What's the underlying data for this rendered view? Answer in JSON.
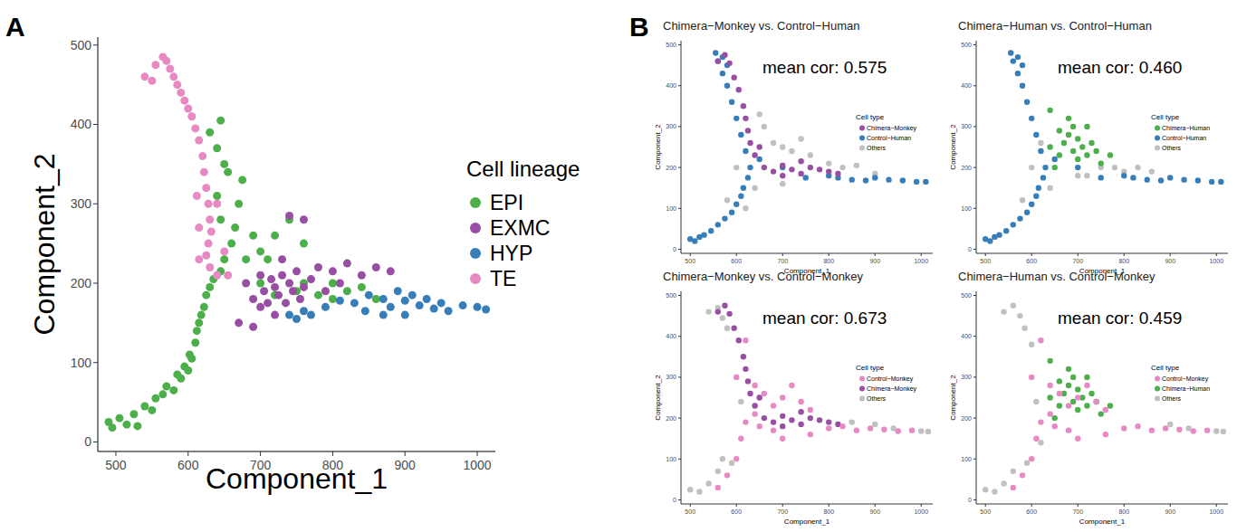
{
  "chart_data": [
    {
      "type": "scatter",
      "panel": "A",
      "x_label": "Component_1",
      "y_label": "Component_2",
      "legend_title": "Cell lineage",
      "legend": "right",
      "xlim": [
        475,
        1025
      ],
      "ylim": [
        -12,
        510
      ],
      "xticks": [
        500,
        600,
        700,
        800,
        900,
        1000
      ],
      "yticks": [
        0,
        100,
        200,
        300,
        400,
        500
      ],
      "series": [
        {
          "name": "EPI",
          "color": "#4daf4a",
          "x": [
            490,
            495,
            505,
            515,
            525,
            530,
            540,
            550,
            555,
            565,
            570,
            580,
            585,
            590,
            595,
            600,
            602,
            605,
            610,
            612,
            615,
            618,
            622,
            625,
            630,
            635,
            645,
            650,
            660,
            665,
            670,
            675,
            655,
            640,
            645,
            690,
            700,
            710,
            720,
            740,
            760,
            700,
            720,
            750,
            780,
            800,
            820,
            840,
            860,
            630,
            640,
            650,
            680,
            760,
            800,
            645
          ],
          "y": [
            25,
            18,
            30,
            22,
            35,
            20,
            45,
            40,
            55,
            60,
            70,
            65,
            85,
            80,
            95,
            90,
            110,
            105,
            125,
            140,
            150,
            160,
            170,
            185,
            195,
            205,
            215,
            230,
            250,
            270,
            300,
            330,
            340,
            310,
            280,
            260,
            240,
            230,
            260,
            280,
            250,
            200,
            185,
            190,
            185,
            180,
            190,
            195,
            180,
            390,
            370,
            350,
            230,
            200,
            200,
            405
          ]
        },
        {
          "name": "EXMC",
          "color": "#984ea3",
          "x": [
            680,
            690,
            700,
            705,
            710,
            715,
            720,
            725,
            730,
            735,
            740,
            745,
            750,
            755,
            760,
            770,
            780,
            790,
            800,
            810,
            820,
            840,
            860,
            880,
            700,
            720,
            740,
            760,
            670,
            690,
            730
          ],
          "y": [
            200,
            180,
            210,
            190,
            175,
            205,
            195,
            185,
            210,
            175,
            200,
            190,
            215,
            180,
            195,
            205,
            220,
            190,
            215,
            200,
            225,
            210,
            220,
            215,
            170,
            160,
            285,
            280,
            150,
            145,
            230
          ]
        },
        {
          "name": "HYP",
          "color": "#377eb8",
          "x": [
            740,
            750,
            760,
            770,
            790,
            810,
            830,
            850,
            870,
            880,
            890,
            900,
            910,
            920,
            930,
            940,
            950,
            960,
            980,
            1000,
            1012,
            870,
            845,
            900
          ],
          "y": [
            160,
            155,
            165,
            160,
            170,
            178,
            175,
            185,
            180,
            170,
            190,
            178,
            185,
            172,
            180,
            168,
            175,
            165,
            172,
            170,
            167,
            160,
            165,
            160
          ]
        },
        {
          "name": "TE",
          "color": "#e78ac3",
          "x": [
            540,
            550,
            555,
            565,
            570,
            575,
            580,
            585,
            590,
            595,
            600,
            605,
            610,
            615,
            620,
            622,
            625,
            628,
            630,
            632,
            628,
            625,
            630,
            615,
            640,
            650,
            612,
            615,
            640,
            655
          ],
          "y": [
            460,
            455,
            475,
            485,
            480,
            470,
            460,
            450,
            440,
            430,
            420,
            410,
            395,
            380,
            360,
            340,
            320,
            300,
            280,
            265,
            250,
            235,
            220,
            230,
            210,
            240,
            310,
            270,
            300,
            210
          ]
        }
      ]
    },
    {
      "type": "scatter",
      "panel": "B",
      "title": "Chimera−Monkey vs. Control−Human",
      "annotations": [
        "mean cor: 0.575"
      ],
      "x_label": "Component_1",
      "y_label": "Component_2",
      "legend_title": "Cell type",
      "legend": "top-right",
      "xlim": [
        480,
        1025
      ],
      "ylim": [
        -10,
        510
      ],
      "xticks": [
        500,
        600,
        700,
        800,
        900,
        1000
      ],
      "yticks": [
        0,
        100,
        200,
        300,
        400,
        500
      ],
      "series": [
        {
          "name": "Others",
          "color": "#c0c0c0",
          "x": [
            600,
            680,
            700,
            720,
            760,
            740,
            660,
            650,
            800,
            830,
            860,
            700,
            620,
            580,
            640,
            900
          ],
          "y": [
            200,
            260,
            250,
            240,
            230,
            270,
            300,
            330,
            210,
            200,
            205,
            160,
            100,
            120,
            150,
            185
          ]
        },
        {
          "name": "Control−Human",
          "color": "#377eb8",
          "x": [
            500,
            510,
            520,
            530,
            545,
            560,
            575,
            590,
            600,
            610,
            615,
            625,
            630,
            620,
            610,
            600,
            590,
            580,
            570,
            560,
            555,
            570,
            580,
            820,
            850,
            880,
            900,
            930,
            960,
            990,
            1010,
            800,
            700,
            750,
            650
          ],
          "y": [
            25,
            20,
            30,
            35,
            45,
            60,
            75,
            90,
            110,
            130,
            150,
            175,
            200,
            240,
            280,
            320,
            360,
            400,
            430,
            460,
            480,
            470,
            450,
            175,
            170,
            168,
            175,
            170,
            168,
            165,
            165,
            180,
            200,
            175,
            220
          ]
        },
        {
          "name": "Chimera−Monkey",
          "color": "#984ea3",
          "x": [
            560,
            575,
            585,
            595,
            605,
            615,
            620,
            625,
            630,
            640,
            660,
            680,
            700,
            720,
            740,
            760,
            780,
            800,
            820,
            700,
            740,
            650
          ],
          "y": [
            460,
            475,
            455,
            420,
            390,
            350,
            320,
            290,
            260,
            230,
            200,
            190,
            205,
            195,
            185,
            200,
            195,
            190,
            185,
            180,
            215,
            250
          ]
        }
      ]
    },
    {
      "type": "scatter",
      "title": "Chimera−Human vs. Control−Human",
      "annotations": [
        "mean cor: 0.460"
      ],
      "x_label": "Component_1",
      "y_label": "Component_2",
      "legend_title": "Cell type",
      "legend": "top-right",
      "xlim": [
        480,
        1025
      ],
      "ylim": [
        -10,
        510
      ],
      "xticks": [
        500,
        600,
        700,
        800,
        900,
        1000
      ],
      "yticks": [
        0,
        100,
        200,
        300,
        400,
        500
      ],
      "series": [
        {
          "name": "Others",
          "color": "#c0c0c0",
          "x": [
            600,
            620,
            750,
            780,
            800,
            830,
            700,
            640,
            580,
            860,
            720
          ],
          "y": [
            200,
            260,
            200,
            200,
            190,
            200,
            180,
            150,
            120,
            190,
            180
          ]
        },
        {
          "name": "Control−Human",
          "color": "#377eb8",
          "x": [
            500,
            510,
            520,
            530,
            545,
            560,
            575,
            590,
            600,
            610,
            615,
            625,
            630,
            620,
            610,
            600,
            590,
            580,
            570,
            560,
            555,
            570,
            580,
            820,
            850,
            880,
            900,
            930,
            960,
            990,
            1010,
            800,
            700,
            750,
            650
          ],
          "y": [
            25,
            20,
            30,
            35,
            45,
            60,
            75,
            90,
            110,
            130,
            150,
            175,
            200,
            240,
            280,
            320,
            360,
            400,
            430,
            460,
            480,
            470,
            450,
            175,
            170,
            168,
            175,
            170,
            168,
            165,
            165,
            180,
            200,
            175,
            220
          ]
        },
        {
          "name": "Chimera−Human",
          "color": "#4daf4a",
          "x": [
            650,
            660,
            670,
            680,
            690,
            700,
            710,
            720,
            730,
            740,
            680,
            700,
            660,
            750,
            720,
            640,
            690,
            770,
            640
          ],
          "y": [
            200,
            230,
            260,
            280,
            300,
            270,
            250,
            230,
            260,
            240,
            320,
            220,
            290,
            210,
            300,
            340,
            240,
            230,
            250
          ]
        }
      ]
    },
    {
      "type": "scatter",
      "title": "Chimera−Monkey vs. Control−Monkey",
      "annotations": [
        "mean cor: 0.673"
      ],
      "x_label": "Component_1",
      "y_label": "Component_2",
      "legend_title": "Cell type",
      "legend": "top-right",
      "xlim": [
        480,
        1025
      ],
      "ylim": [
        -10,
        510
      ],
      "xticks": [
        500,
        600,
        700,
        800,
        900,
        1000
      ],
      "yticks": [
        0,
        100,
        200,
        300,
        400,
        500
      ],
      "series": [
        {
          "name": "Others",
          "color": "#c0c0c0",
          "x": [
            500,
            520,
            540,
            560,
            590,
            540,
            560,
            570,
            580,
            900,
            940,
            1000,
            1015,
            850,
            610,
            570
          ],
          "y": [
            25,
            20,
            40,
            70,
            90,
            460,
            470,
            445,
            420,
            185,
            175,
            168,
            167,
            190,
            240,
            100
          ]
        },
        {
          "name": "Chimera−Monkey",
          "color": "#984ea3",
          "x": [
            560,
            575,
            585,
            595,
            605,
            615,
            620,
            625,
            630,
            640,
            660,
            680,
            700,
            720,
            740,
            760,
            780,
            800,
            820,
            700,
            740,
            650
          ],
          "y": [
            460,
            475,
            455,
            420,
            390,
            350,
            320,
            290,
            260,
            230,
            200,
            190,
            205,
            195,
            185,
            200,
            195,
            190,
            185,
            180,
            215,
            250
          ]
        },
        {
          "name": "Control−Monkey",
          "color": "#e78ac3",
          "x": [
            560,
            580,
            600,
            610,
            620,
            640,
            650,
            660,
            680,
            700,
            720,
            740,
            760,
            680,
            700,
            800,
            830,
            860,
            890,
            920,
            950,
            980,
            640,
            600,
            620,
            760
          ],
          "y": [
            30,
            60,
            100,
            150,
            190,
            210,
            180,
            260,
            230,
            250,
            280,
            240,
            220,
            170,
            150,
            175,
            180,
            170,
            175,
            172,
            168,
            170,
            280,
            300,
            390,
            160
          ]
        }
      ]
    },
    {
      "type": "scatter",
      "title": "Chimera−Human vs. Control−Monkey",
      "annotations": [
        "mean cor: 0.459"
      ],
      "x_label": "Component_1",
      "y_label": "Component_2",
      "legend_title": "Cell type",
      "legend": "top-right",
      "xlim": [
        480,
        1025
      ],
      "ylim": [
        -10,
        510
      ],
      "xticks": [
        500,
        600,
        700,
        800,
        900,
        1000
      ],
      "yticks": [
        0,
        100,
        200,
        300,
        400,
        500
      ],
      "series": [
        {
          "name": "Others",
          "color": "#c0c0c0",
          "x": [
            500,
            520,
            540,
            560,
            590,
            540,
            560,
            575,
            585,
            600,
            900,
            940,
            1000,
            1015,
            620,
            610
          ],
          "y": [
            25,
            20,
            40,
            70,
            90,
            460,
            475,
            450,
            420,
            380,
            185,
            175,
            168,
            167,
            140,
            240
          ]
        },
        {
          "name": "Chimera−Human",
          "color": "#4daf4a",
          "x": [
            650,
            660,
            670,
            680,
            690,
            700,
            710,
            720,
            730,
            740,
            680,
            700,
            660,
            750,
            720,
            640,
            690,
            770,
            640
          ],
          "y": [
            200,
            230,
            260,
            280,
            300,
            270,
            250,
            230,
            260,
            240,
            320,
            220,
            290,
            210,
            300,
            340,
            240,
            230,
            250
          ]
        },
        {
          "name": "Control−Monkey",
          "color": "#e78ac3",
          "x": [
            560,
            580,
            600,
            610,
            620,
            640,
            650,
            660,
            680,
            700,
            720,
            740,
            760,
            680,
            700,
            800,
            830,
            860,
            890,
            920,
            950,
            980,
            640,
            600,
            620,
            760
          ],
          "y": [
            30,
            60,
            100,
            150,
            190,
            210,
            180,
            260,
            230,
            250,
            280,
            240,
            220,
            170,
            150,
            175,
            180,
            170,
            175,
            172,
            168,
            170,
            280,
            300,
            390,
            160
          ]
        }
      ]
    }
  ]
}
